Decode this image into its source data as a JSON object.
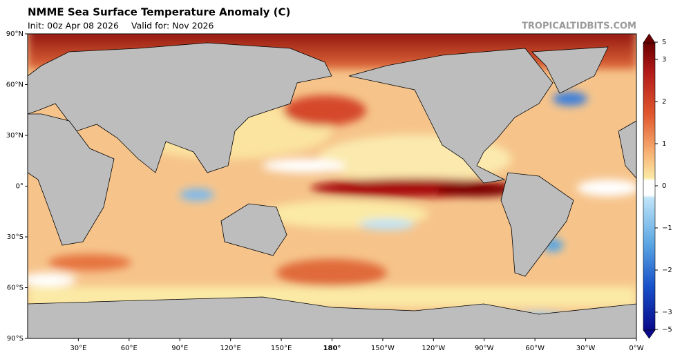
{
  "header": {
    "title": "NMME Sea Surface Temperature Anomaly (C)",
    "init": "Init: 00z Apr 08 2026",
    "valid": "Valid for: Nov 2026",
    "source": "TROPICALTIDBITS.COM"
  },
  "map": {
    "lat_ticks": [
      {
        "value": 90,
        "label": "90°N"
      },
      {
        "value": 60,
        "label": "60°N"
      },
      {
        "value": 30,
        "label": "30°N"
      },
      {
        "value": 0,
        "label": "0°"
      },
      {
        "value": -30,
        "label": "30°S"
      },
      {
        "value": -60,
        "label": "60°S"
      },
      {
        "value": -90,
        "label": "90°S"
      }
    ],
    "lon_ticks": [
      {
        "value": 30,
        "label": "30°E"
      },
      {
        "value": 60,
        "label": "60°E"
      },
      {
        "value": 90,
        "label": "90°E"
      },
      {
        "value": 120,
        "label": "120°E"
      },
      {
        "value": 150,
        "label": "150°E"
      },
      {
        "value": 180,
        "label": "180°"
      },
      {
        "value": 210,
        "label": "150°W"
      },
      {
        "value": 240,
        "label": "120°W"
      },
      {
        "value": 270,
        "label": "90°W"
      },
      {
        "value": 300,
        "label": "60°W"
      },
      {
        "value": 330,
        "label": "30°W"
      },
      {
        "value": 360,
        "label": "0°W"
      }
    ]
  },
  "colorbar": {
    "ticks": [
      {
        "value": 5,
        "label": "5"
      },
      {
        "value": 3,
        "label": "3"
      },
      {
        "value": 2,
        "label": "2"
      },
      {
        "value": 1,
        "label": "1"
      },
      {
        "value": 0,
        "label": "0"
      },
      {
        "value": -1,
        "label": "−1"
      },
      {
        "value": -2,
        "label": "−2"
      },
      {
        "value": -3,
        "label": "−3"
      },
      {
        "value": -5,
        "label": "−5"
      }
    ]
  }
}
